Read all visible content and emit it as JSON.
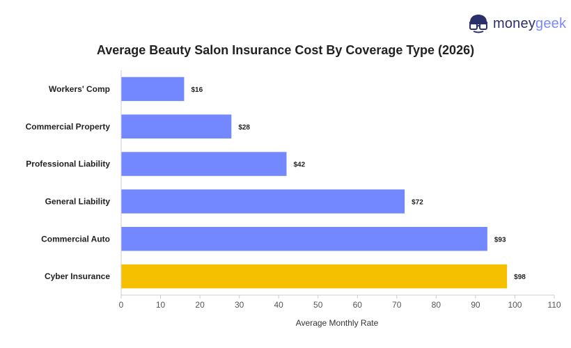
{
  "brand": {
    "money": "money",
    "geek": "geek",
    "icon": "nerd-glasses-icon"
  },
  "colors": {
    "bar": "#7388ff",
    "highlight": "#f5c000",
    "axis": "#cccccc",
    "text": "#222222"
  },
  "chart_data": {
    "type": "bar",
    "orientation": "horizontal",
    "title": "Average Beauty Salon Insurance Cost By Coverage Type (2026)",
    "xlabel": "Average Monthly Rate",
    "ylabel": "",
    "xlim": [
      0,
      110
    ],
    "ticks": [
      0,
      10,
      20,
      30,
      40,
      50,
      60,
      70,
      80,
      90,
      100,
      110
    ],
    "grid": false,
    "categories": [
      "Workers' Comp",
      "Commercial Property",
      "Professional Liability",
      "General Liability",
      "Commercial Auto",
      "Cyber Insurance"
    ],
    "values": [
      16,
      28,
      42,
      72,
      93,
      98
    ],
    "data_labels": [
      "$16",
      "$28",
      "$42",
      "$72",
      "$93",
      "$98"
    ],
    "highlight_category": "Cyber Insurance"
  }
}
